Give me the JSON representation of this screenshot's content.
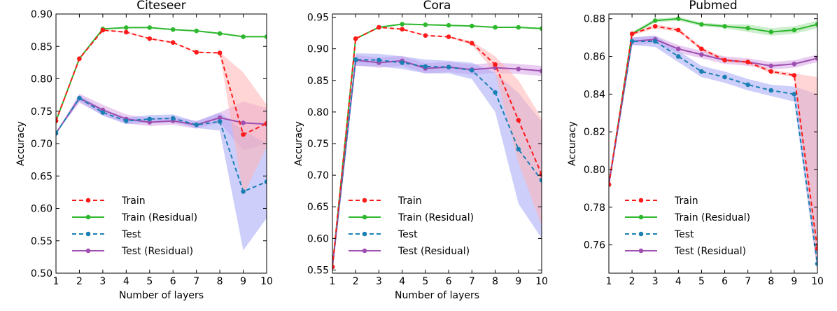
{
  "legend": {
    "train": "Train",
    "train_residual": "Train (Residual)",
    "test": "Test",
    "test_residual": "Test (Residual)"
  },
  "colors": {
    "train": "#ff1a1a",
    "train_residual": "#2eb82e",
    "test": "#1a80b3",
    "test_residual": "#9e4fb0",
    "band_train": "#ffb3b3",
    "band_train_residual": "#a3e0a3",
    "band_test": "#a6a6f5",
    "band_test_residual": "#d9a6e6"
  },
  "chart_data": [
    {
      "type": "line",
      "title": "Citeseer",
      "xlabel": "Number of layers",
      "ylabel": "Accuracy",
      "xlim": [
        1,
        10
      ],
      "ylim": [
        0.5,
        0.9
      ],
      "yticks": [
        "0.50",
        "0.55",
        "0.60",
        "0.65",
        "0.70",
        "0.75",
        "0.80",
        "0.85",
        "0.90"
      ],
      "x": [
        1,
        2,
        3,
        4,
        5,
        6,
        7,
        8,
        9,
        10
      ],
      "series": [
        {
          "key": "train",
          "name": "Train",
          "style": "dashed",
          "values": [
            0.735,
            0.831,
            0.875,
            0.872,
            0.862,
            0.856,
            0.841,
            0.84,
            0.714,
            0.731
          ],
          "band_low": [
            0.735,
            0.831,
            0.874,
            0.871,
            0.861,
            0.855,
            0.84,
            0.839,
            0.62,
            0.695
          ],
          "band_high": [
            0.735,
            0.831,
            0.876,
            0.873,
            0.863,
            0.857,
            0.842,
            0.841,
            0.81,
            0.76
          ]
        },
        {
          "key": "train_residual",
          "name": "Train (Residual)",
          "style": "solid",
          "values": [
            0.735,
            0.831,
            0.877,
            0.879,
            0.879,
            0.876,
            0.874,
            0.87,
            0.865,
            0.865
          ],
          "band_low": [
            0.735,
            0.831,
            0.876,
            0.878,
            0.878,
            0.875,
            0.873,
            0.869,
            0.864,
            0.864
          ],
          "band_high": [
            0.735,
            0.831,
            0.878,
            0.88,
            0.88,
            0.877,
            0.875,
            0.871,
            0.866,
            0.866
          ]
        },
        {
          "key": "test",
          "name": "Test",
          "style": "dashed",
          "values": [
            0.716,
            0.77,
            0.748,
            0.735,
            0.738,
            0.739,
            0.729,
            0.734,
            0.626,
            0.641
          ],
          "band_low": [
            0.716,
            0.765,
            0.743,
            0.73,
            0.732,
            0.733,
            0.724,
            0.72,
            0.535,
            0.585
          ],
          "band_high": [
            0.716,
            0.775,
            0.753,
            0.74,
            0.744,
            0.745,
            0.734,
            0.748,
            0.72,
            0.7
          ]
        },
        {
          "key": "test_residual",
          "name": "Test (Residual)",
          "style": "solid",
          "values": [
            0.716,
            0.77,
            0.752,
            0.738,
            0.733,
            0.735,
            0.729,
            0.74,
            0.732,
            0.73
          ],
          "band_low": [
            0.716,
            0.763,
            0.744,
            0.731,
            0.727,
            0.729,
            0.723,
            0.732,
            0.69,
            0.7
          ],
          "band_high": [
            0.716,
            0.777,
            0.76,
            0.745,
            0.739,
            0.741,
            0.735,
            0.748,
            0.765,
            0.755
          ]
        }
      ]
    },
    {
      "type": "line",
      "title": "Cora",
      "xlabel": "Number of layers",
      "ylabel": "Accuracy",
      "xlim": [
        1,
        10
      ],
      "ylim": [
        0.545,
        0.955
      ],
      "yticks": [
        "0.55",
        "0.60",
        "0.65",
        "0.70",
        "0.75",
        "0.80",
        "0.85",
        "0.90",
        "0.95"
      ],
      "x": [
        1,
        2,
        3,
        4,
        5,
        6,
        7,
        8,
        9,
        10
      ],
      "series": [
        {
          "key": "train",
          "name": "Train",
          "style": "dashed",
          "values": [
            0.555,
            0.916,
            0.934,
            0.931,
            0.921,
            0.919,
            0.909,
            0.875,
            0.787,
            0.701
          ],
          "band_low": [
            0.555,
            0.915,
            0.933,
            0.93,
            0.92,
            0.918,
            0.906,
            0.862,
            0.72,
            0.62
          ],
          "band_high": [
            0.555,
            0.917,
            0.935,
            0.932,
            0.922,
            0.92,
            0.912,
            0.888,
            0.85,
            0.79
          ]
        },
        {
          "key": "train_residual",
          "name": "Train (Residual)",
          "style": "solid",
          "values": [
            0.555,
            0.916,
            0.934,
            0.939,
            0.938,
            0.937,
            0.936,
            0.934,
            0.934,
            0.932
          ],
          "band_low": [
            0.555,
            0.915,
            0.933,
            0.938,
            0.937,
            0.936,
            0.935,
            0.933,
            0.933,
            0.931
          ],
          "band_high": [
            0.555,
            0.917,
            0.935,
            0.94,
            0.939,
            0.938,
            0.937,
            0.935,
            0.935,
            0.933
          ]
        },
        {
          "key": "test",
          "name": "Test",
          "style": "dashed",
          "values": [
            0.555,
            0.883,
            0.882,
            0.878,
            0.872,
            0.871,
            0.866,
            0.831,
            0.741,
            0.692
          ],
          "band_low": [
            0.555,
            0.873,
            0.872,
            0.868,
            0.861,
            0.861,
            0.852,
            0.8,
            0.655,
            0.6
          ],
          "band_high": [
            0.555,
            0.893,
            0.892,
            0.888,
            0.883,
            0.881,
            0.878,
            0.862,
            0.83,
            0.785
          ]
        },
        {
          "key": "test_residual",
          "name": "Test (Residual)",
          "style": "solid",
          "values": [
            0.555,
            0.882,
            0.878,
            0.881,
            0.869,
            0.871,
            0.867,
            0.87,
            0.868,
            0.865
          ],
          "band_low": [
            0.555,
            0.874,
            0.87,
            0.873,
            0.861,
            0.863,
            0.859,
            0.862,
            0.86,
            0.857
          ],
          "band_high": [
            0.555,
            0.89,
            0.886,
            0.889,
            0.877,
            0.879,
            0.875,
            0.878,
            0.876,
            0.873
          ]
        }
      ]
    },
    {
      "type": "line",
      "title": "Pubmed",
      "xlabel": "",
      "ylabel": "Accuracy",
      "xlim": [
        1,
        10
      ],
      "ylim": [
        0.745,
        0.8825
      ],
      "yticks": [
        "0.76",
        "0.78",
        "0.80",
        "0.82",
        "0.84",
        "0.86",
        "0.88"
      ],
      "x": [
        1,
        2,
        3,
        4,
        5,
        6,
        7,
        8,
        9,
        10
      ],
      "series": [
        {
          "key": "train",
          "name": "Train",
          "style": "dashed",
          "values": [
            0.792,
            0.872,
            0.876,
            0.874,
            0.864,
            0.858,
            0.857,
            0.852,
            0.85,
            0.758
          ],
          "band_low": [
            0.792,
            0.871,
            0.875,
            0.873,
            0.863,
            0.857,
            0.856,
            0.851,
            0.849,
            0.745
          ],
          "band_high": [
            0.792,
            0.873,
            0.877,
            0.875,
            0.865,
            0.859,
            0.858,
            0.853,
            0.851,
            0.849
          ]
        },
        {
          "key": "train_residual",
          "name": "Train (Residual)",
          "style": "solid",
          "values": [
            0.792,
            0.872,
            0.879,
            0.88,
            0.877,
            0.876,
            0.875,
            0.873,
            0.874,
            0.877
          ],
          "band_low": [
            0.792,
            0.871,
            0.878,
            0.879,
            0.876,
            0.875,
            0.873,
            0.871,
            0.872,
            0.875
          ],
          "band_high": [
            0.792,
            0.873,
            0.88,
            0.881,
            0.878,
            0.877,
            0.877,
            0.875,
            0.876,
            0.879
          ]
        },
        {
          "key": "test",
          "name": "Test",
          "style": "dashed",
          "values": [
            0.792,
            0.868,
            0.868,
            0.86,
            0.852,
            0.849,
            0.845,
            0.842,
            0.84,
            0.75
          ],
          "band_low": [
            0.792,
            0.866,
            0.865,
            0.857,
            0.849,
            0.846,
            0.842,
            0.839,
            0.836,
            0.745
          ],
          "band_high": [
            0.792,
            0.87,
            0.871,
            0.863,
            0.855,
            0.852,
            0.848,
            0.845,
            0.844,
            0.84
          ]
        },
        {
          "key": "test_residual",
          "name": "Test (Residual)",
          "style": "solid",
          "values": [
            0.792,
            0.868,
            0.869,
            0.864,
            0.861,
            0.858,
            0.857,
            0.855,
            0.856,
            0.859
          ],
          "band_low": [
            0.792,
            0.866,
            0.867,
            0.862,
            0.859,
            0.856,
            0.855,
            0.853,
            0.854,
            0.857
          ],
          "band_high": [
            0.792,
            0.87,
            0.871,
            0.866,
            0.863,
            0.86,
            0.859,
            0.857,
            0.858,
            0.861
          ]
        }
      ]
    }
  ]
}
